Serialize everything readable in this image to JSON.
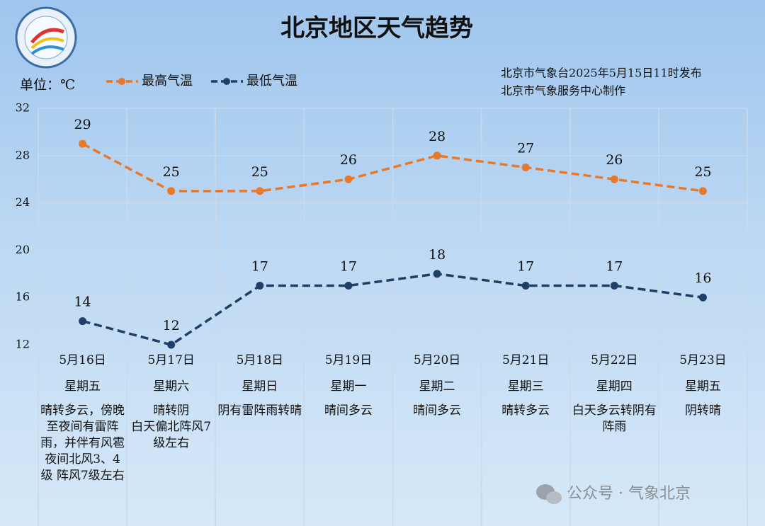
{
  "chart_data": {
    "type": "line",
    "title": "北京地区天气趋势",
    "unit_label": "单位：℃",
    "issuer_lines": [
      "北京市气象台2025年5月15日11时发布",
      "北京市气象服务中心制作"
    ],
    "categories": [
      "5月16日",
      "5月17日",
      "5月18日",
      "5月19日",
      "5月20日",
      "5月21日",
      "5月22日",
      "5月23日"
    ],
    "weekdays": [
      "星期五",
      "星期六",
      "星期日",
      "星期一",
      "星期二",
      "星期三",
      "星期四",
      "星期五"
    ],
    "descriptions": [
      [
        "晴转多云，傍晚至夜间有雷阵雨，并伴有风雹",
        "夜间北风3、4级 阵风7级左右"
      ],
      [
        "晴转阴",
        "白天偏北阵风7级左右"
      ],
      [
        "阴有雷阵雨转晴"
      ],
      [
        "晴间多云"
      ],
      [
        "晴间多云"
      ],
      [
        "晴转多云"
      ],
      [
        "白天多云转阴有阵雨"
      ],
      [
        "阴转晴"
      ]
    ],
    "series": [
      {
        "name": "最高气温",
        "color": "#e8792a",
        "values": [
          29,
          25,
          25,
          26,
          28,
          27,
          26,
          25
        ]
      },
      {
        "name": "最低气温",
        "color": "#1f3f66",
        "values": [
          14,
          12,
          17,
          17,
          18,
          17,
          17,
          16
        ]
      }
    ],
    "ylim": [
      12,
      32
    ],
    "yticks": [
      12,
      16,
      20,
      24,
      28,
      32
    ],
    "grid": true,
    "watermark": "公众号 · 气象北京"
  }
}
